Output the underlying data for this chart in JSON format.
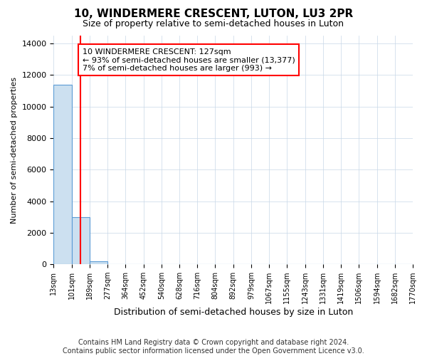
{
  "title": "10, WINDERMERE CRESCENT, LUTON, LU3 2PR",
  "subtitle": "Size of property relative to semi-detached houses in Luton",
  "xlabel": "Distribution of semi-detached houses by size in Luton",
  "ylabel": "Number of semi-detached properties",
  "footer_line1": "Contains HM Land Registry data © Crown copyright and database right 2024.",
  "footer_line2": "Contains public sector information licensed under the Open Government Licence v3.0.",
  "bin_labels": [
    "13sqm",
    "101sqm",
    "189sqm",
    "277sqm",
    "364sqm",
    "452sqm",
    "540sqm",
    "628sqm",
    "716sqm",
    "804sqm",
    "892sqm",
    "979sqm",
    "1067sqm",
    "1155sqm",
    "1243sqm",
    "1331sqm",
    "1419sqm",
    "1506sqm",
    "1594sqm",
    "1682sqm",
    "1770sqm"
  ],
  "bar_values": [
    11400,
    3000,
    200,
    0,
    0,
    0,
    0,
    0,
    0,
    0,
    0,
    0,
    0,
    0,
    0,
    0,
    0,
    0,
    0,
    0
  ],
  "bar_color": "#cce0f0",
  "bar_edge_color": "#5b9bd5",
  "annotation_text": "10 WINDERMERE CRESCENT: 127sqm\n← 93% of semi-detached houses are smaller (13,377)\n7% of semi-detached houses are larger (993) →",
  "ylim": [
    0,
    14500
  ],
  "yticks": [
    0,
    2000,
    4000,
    6000,
    8000,
    10000,
    12000,
    14000
  ],
  "background_color": "#ffffff",
  "grid_color": "#c8d8e8",
  "title_fontsize": 11,
  "subtitle_fontsize": 9,
  "ylabel_fontsize": 8,
  "xlabel_fontsize": 9,
  "tick_fontsize": 8,
  "footer_fontsize": 7
}
